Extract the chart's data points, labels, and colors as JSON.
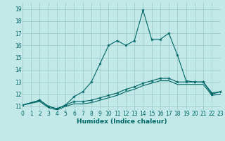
{
  "xlabel": "Humidex (Indice chaleur)",
  "xlim": [
    0,
    23
  ],
  "ylim": [
    10.7,
    19.5
  ],
  "yticks": [
    11,
    12,
    13,
    14,
    15,
    16,
    17,
    18,
    19
  ],
  "xticks": [
    0,
    1,
    2,
    3,
    4,
    5,
    6,
    7,
    8,
    9,
    10,
    11,
    12,
    13,
    14,
    15,
    16,
    17,
    18,
    19,
    20,
    21,
    22,
    23
  ],
  "bg_color": "#c2e8e8",
  "grid_color": "#a0cccc",
  "line_color": "#006666",
  "curve_x": [
    0,
    2,
    3,
    4,
    5,
    6,
    7,
    8,
    9,
    10,
    11,
    12,
    13,
    14,
    15,
    16,
    17,
    18,
    19,
    20,
    21,
    22,
    23
  ],
  "curve_y": [
    11.1,
    11.5,
    11.0,
    10.8,
    11.1,
    11.8,
    12.2,
    13.0,
    14.5,
    16.0,
    16.4,
    16.0,
    16.4,
    18.9,
    16.5,
    16.5,
    17.0,
    15.2,
    13.1,
    13.0,
    13.0,
    12.0,
    12.2
  ],
  "line2_x": [
    0,
    2,
    3,
    4,
    5,
    6,
    7,
    8,
    9,
    10,
    11,
    12,
    13,
    14,
    15,
    16,
    17,
    18,
    19,
    20,
    21,
    22,
    23
  ],
  "line2_y": [
    11.1,
    11.5,
    11.0,
    10.8,
    11.1,
    11.4,
    11.4,
    11.5,
    11.7,
    11.9,
    12.1,
    12.4,
    12.6,
    12.9,
    13.1,
    13.3,
    13.3,
    13.0,
    13.0,
    13.0,
    13.0,
    12.1,
    12.2
  ],
  "line3_x": [
    0,
    2,
    3,
    4,
    5,
    6,
    7,
    8,
    9,
    10,
    11,
    12,
    13,
    14,
    15,
    16,
    17,
    18,
    19,
    20,
    21,
    22,
    23
  ],
  "line3_y": [
    11.1,
    11.4,
    10.9,
    10.7,
    11.0,
    11.2,
    11.2,
    11.3,
    11.5,
    11.7,
    11.9,
    12.2,
    12.4,
    12.7,
    12.9,
    13.1,
    13.1,
    12.8,
    12.8,
    12.8,
    12.8,
    11.9,
    12.0
  ]
}
